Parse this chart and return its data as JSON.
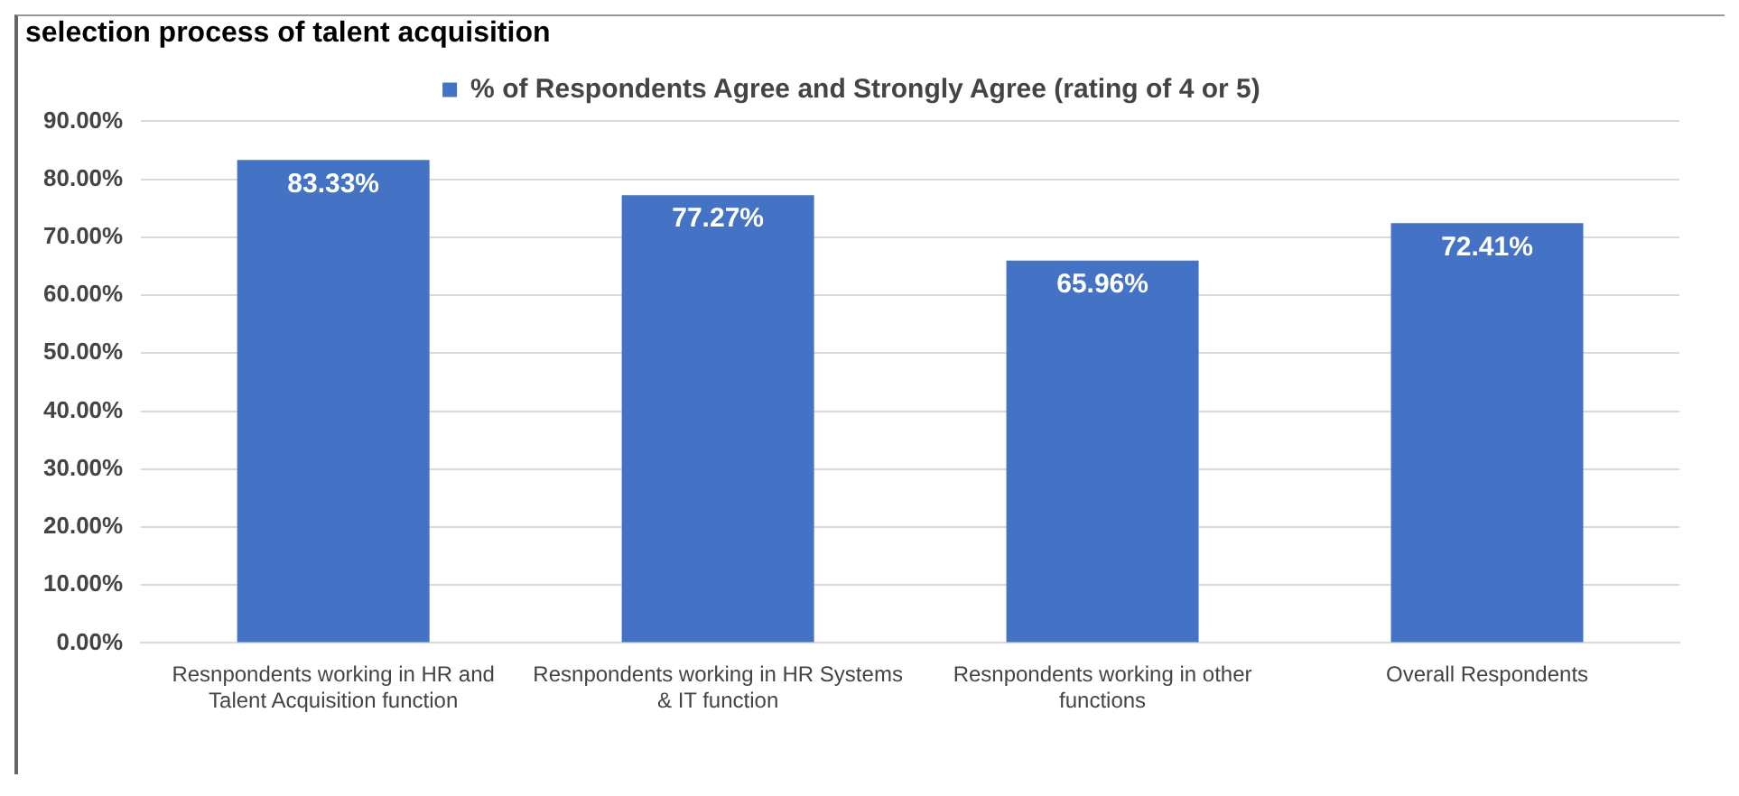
{
  "chart_data": {
    "type": "bar",
    "title": "selection process of talent acquisition",
    "categories": [
      "Resnpondents working in HR and Talent Acquisition function",
      "Resnpondents working in HR Systems & IT function",
      "Resnpondents working in other functions",
      "Overall Respondents"
    ],
    "series": [
      {
        "name": "% of Respondents Agree and Strongly Agree (rating of 4 or 5)",
        "color": "#4472c4",
        "values": [
          83.33,
          77.27,
          65.96,
          72.41
        ],
        "value_labels": [
          "83.33%",
          "77.27%",
          "65.96%",
          "72.41%"
        ]
      }
    ],
    "ylim": [
      0,
      90
    ],
    "yticks": [
      {
        "value": 0,
        "label": "0.00%"
      },
      {
        "value": 10,
        "label": "10.00%"
      },
      {
        "value": 20,
        "label": "20.00%"
      },
      {
        "value": 30,
        "label": "30.00%"
      },
      {
        "value": 40,
        "label": "40.00%"
      },
      {
        "value": 50,
        "label": "50.00%"
      },
      {
        "value": 60,
        "label": "60.00%"
      },
      {
        "value": 70,
        "label": "70.00%"
      },
      {
        "value": 80,
        "label": "80.00%"
      },
      {
        "value": 90,
        "label": "90.00%"
      }
    ],
    "grid": "y",
    "legend": "top"
  }
}
